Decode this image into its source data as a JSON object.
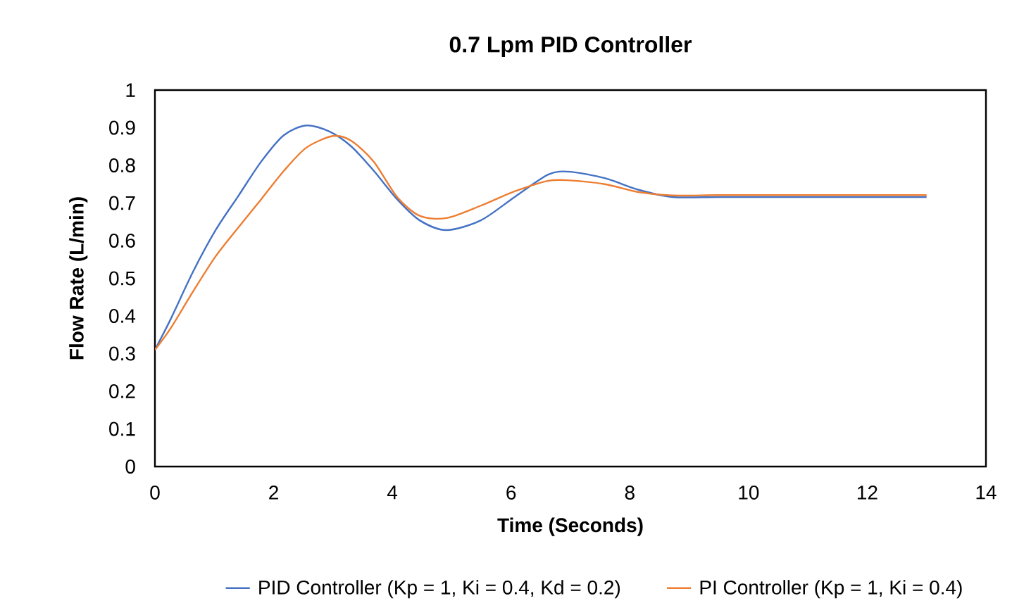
{
  "chart_data": {
    "type": "line",
    "title": "0.7 Lpm PID Controller",
    "xlabel": "Time (Seconds)",
    "ylabel": "Flow Rate (L/min)",
    "xlim": [
      0,
      14
    ],
    "ylim": [
      0,
      1
    ],
    "xticks": [
      0,
      2,
      4,
      6,
      8,
      10,
      12,
      14
    ],
    "yticks": [
      0,
      0.1,
      0.2,
      0.3,
      0.4,
      0.5,
      0.6,
      0.7,
      0.8,
      0.9,
      1
    ],
    "grid": false,
    "legend": "bottom",
    "marker": "none",
    "line_style": "solid",
    "series": [
      {
        "name": "PID Controller (Kp = 1, Ki = 0.4, Kd = 0.2)",
        "color": "#4472c4",
        "x": [
          0,
          0.26,
          0.65,
          1.03,
          1.41,
          1.79,
          2.17,
          2.55,
          2.94,
          3.31,
          3.69,
          4.08,
          4.46,
          4.91,
          5.49,
          6.06,
          6.63,
          7.0,
          7.58,
          8.15,
          8.72,
          9.5,
          10.5,
          11.5,
          13
        ],
        "values": [
          0.31,
          0.39,
          0.52,
          0.63,
          0.72,
          0.81,
          0.88,
          0.906,
          0.89,
          0.85,
          0.785,
          0.71,
          0.654,
          0.628,
          0.654,
          0.716,
          0.776,
          0.783,
          0.766,
          0.735,
          0.716,
          0.716,
          0.716,
          0.716,
          0.716
        ]
      },
      {
        "name": "PI Controller (Kp = 1, Ki = 0.4)",
        "color": "#ed7d31",
        "x": [
          0,
          0.26,
          0.65,
          1.03,
          1.41,
          1.79,
          2.17,
          2.55,
          3.0,
          3.31,
          3.69,
          4.08,
          4.46,
          4.91,
          5.49,
          6.06,
          6.63,
          7.0,
          7.58,
          8.15,
          8.72,
          9.5,
          10.5,
          11.5,
          13
        ],
        "values": [
          0.31,
          0.366,
          0.467,
          0.56,
          0.636,
          0.71,
          0.785,
          0.847,
          0.878,
          0.865,
          0.809,
          0.716,
          0.666,
          0.66,
          0.693,
          0.731,
          0.759,
          0.76,
          0.75,
          0.729,
          0.72,
          0.721,
          0.721,
          0.721,
          0.721
        ]
      }
    ]
  }
}
